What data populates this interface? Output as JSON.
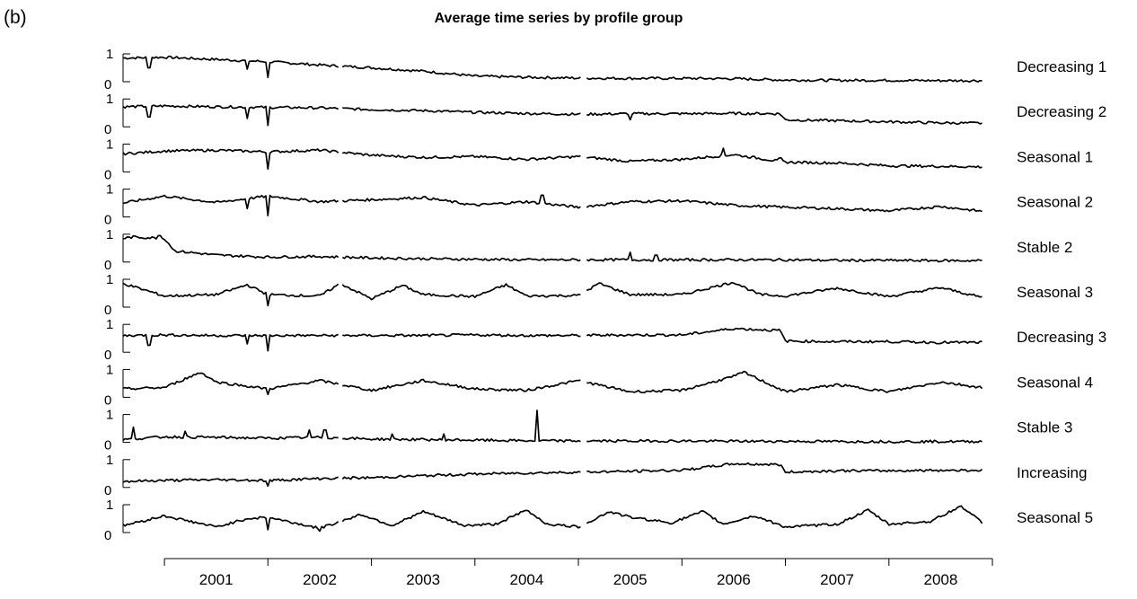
{
  "panel_label": "(b)",
  "chart_data": {
    "type": "line",
    "title": "Average time series by profile group",
    "xlabel": "",
    "ylabel": "",
    "x_tick_labels": [
      "2001",
      "2002",
      "2003",
      "2004",
      "2005",
      "2006",
      "2007",
      "2008"
    ],
    "x_range": [
      2000.6,
      2009.0
    ],
    "ylim": [
      0,
      1
    ],
    "y_tick_labels": [
      "0",
      "1"
    ],
    "grid": false,
    "legend": "none",
    "line_color": "#000000",
    "gaps": [
      2002.7,
      2005.05
    ],
    "series": [
      {
        "name": "Decreasing 1",
        "x": [
          2000.6,
          2001.0,
          2001.5,
          2002.0,
          2002.5,
          2003.0,
          2003.5,
          2004.0,
          2004.5,
          2005.0,
          2005.5,
          2006.0,
          2006.5,
          2007.0,
          2007.5,
          2008.0,
          2008.5,
          2008.9
        ],
        "y": [
          0.85,
          0.88,
          0.8,
          0.72,
          0.6,
          0.5,
          0.38,
          0.2,
          0.16,
          0.13,
          0.12,
          0.12,
          0.11,
          0.06,
          0.05,
          0.05,
          0.04,
          0.04
        ],
        "spikes": [
          [
            2000.85,
            0.5
          ],
          [
            2001.8,
            0.45
          ],
          [
            2002.0,
            0.15
          ]
        ]
      },
      {
        "name": "Decreasing 2",
        "x": [
          2000.6,
          2001.0,
          2001.5,
          2002.0,
          2002.5,
          2003.0,
          2003.5,
          2004.0,
          2004.5,
          2005.0,
          2005.5,
          2006.0,
          2006.5,
          2006.95,
          2007.0,
          2007.5,
          2008.0,
          2008.5,
          2008.9
        ],
        "y": [
          0.72,
          0.75,
          0.72,
          0.7,
          0.68,
          0.62,
          0.58,
          0.52,
          0.48,
          0.45,
          0.47,
          0.47,
          0.48,
          0.47,
          0.25,
          0.22,
          0.18,
          0.14,
          0.13
        ],
        "spikes": [
          [
            2000.85,
            0.35
          ],
          [
            2001.8,
            0.3
          ],
          [
            2002.0,
            0.05
          ],
          [
            2005.5,
            0.25
          ]
        ]
      },
      {
        "name": "Seasonal 1",
        "x": [
          2000.6,
          2001.0,
          2001.5,
          2002.0,
          2002.5,
          2003.0,
          2003.5,
          2004.0,
          2004.5,
          2005.0,
          2005.5,
          2006.0,
          2006.5,
          2007.0,
          2007.5,
          2008.0,
          2008.5,
          2008.9
        ],
        "y": [
          0.65,
          0.75,
          0.78,
          0.72,
          0.78,
          0.6,
          0.52,
          0.55,
          0.45,
          0.55,
          0.38,
          0.45,
          0.62,
          0.35,
          0.32,
          0.22,
          0.2,
          0.18
        ],
        "spikes": [
          [
            2002.0,
            0.1
          ],
          [
            2006.4,
            0.85
          ],
          [
            2006.95,
            0.5
          ]
        ]
      },
      {
        "name": "Seasonal 2",
        "x": [
          2000.6,
          2001.0,
          2001.5,
          2002.0,
          2002.5,
          2003.0,
          2003.5,
          2004.0,
          2004.5,
          2005.0,
          2005.5,
          2006.0,
          2006.5,
          2007.0,
          2007.5,
          2008.0,
          2008.5,
          2008.9
        ],
        "y": [
          0.5,
          0.75,
          0.52,
          0.75,
          0.55,
          0.62,
          0.7,
          0.42,
          0.55,
          0.35,
          0.55,
          0.58,
          0.42,
          0.35,
          0.3,
          0.22,
          0.38,
          0.2
        ],
        "spikes": [
          [
            2001.8,
            0.3
          ],
          [
            2002.0,
            0.05
          ],
          [
            2004.65,
            0.78
          ]
        ]
      },
      {
        "name": "Stable 2",
        "x": [
          2000.6,
          2000.7,
          2001.0,
          2001.1,
          2001.5,
          2002.0,
          2002.5,
          2003.0,
          2003.5,
          2004.0,
          2004.5,
          2005.0,
          2005.5,
          2006.0,
          2006.5,
          2007.0,
          2007.5,
          2008.0,
          2008.5,
          2008.9
        ],
        "y": [
          0.85,
          0.9,
          0.85,
          0.4,
          0.25,
          0.18,
          0.2,
          0.15,
          0.12,
          0.1,
          0.08,
          0.08,
          0.08,
          0.08,
          0.08,
          0.08,
          0.06,
          0.06,
          0.05,
          0.05
        ],
        "spikes": [
          [
            2000.95,
            0.95
          ],
          [
            2005.5,
            0.35
          ],
          [
            2005.75,
            0.25
          ]
        ]
      },
      {
        "name": "Seasonal 3",
        "x": [
          2000.6,
          2001.0,
          2001.5,
          2001.8,
          2002.0,
          2002.5,
          2002.7,
          2003.0,
          2003.3,
          2003.5,
          2004.0,
          2004.3,
          2004.5,
          2005.0,
          2005.2,
          2005.5,
          2006.0,
          2006.5,
          2006.75,
          2007.0,
          2007.5,
          2008.0,
          2008.5,
          2008.9
        ],
        "y": [
          0.85,
          0.4,
          0.45,
          0.8,
          0.45,
          0.4,
          0.85,
          0.3,
          0.78,
          0.45,
          0.38,
          0.8,
          0.4,
          0.42,
          0.85,
          0.45,
          0.45,
          0.9,
          0.45,
          0.4,
          0.68,
          0.38,
          0.7,
          0.35
        ],
        "spikes": [
          [
            2002.0,
            0.05
          ]
        ]
      },
      {
        "name": "Decreasing 3",
        "x": [
          2000.6,
          2001.0,
          2001.5,
          2002.0,
          2002.5,
          2003.0,
          2003.5,
          2004.0,
          2004.5,
          2005.0,
          2005.5,
          2006.0,
          2006.5,
          2006.95,
          2007.0,
          2007.5,
          2008.0,
          2008.5,
          2008.9
        ],
        "y": [
          0.6,
          0.62,
          0.6,
          0.6,
          0.6,
          0.6,
          0.6,
          0.62,
          0.6,
          0.6,
          0.62,
          0.62,
          0.85,
          0.78,
          0.4,
          0.38,
          0.38,
          0.35,
          0.35
        ],
        "spikes": [
          [
            2000.85,
            0.25
          ],
          [
            2001.8,
            0.3
          ],
          [
            2002.0,
            0.05
          ]
        ]
      },
      {
        "name": "Seasonal 4",
        "x": [
          2000.6,
          2001.0,
          2001.35,
          2001.5,
          2002.0,
          2002.5,
          2003.0,
          2003.5,
          2004.0,
          2004.5,
          2005.0,
          2005.5,
          2006.0,
          2006.5,
          2006.6,
          2007.0,
          2007.5,
          2008.0,
          2008.5,
          2008.9
        ],
        "y": [
          0.3,
          0.35,
          0.9,
          0.55,
          0.3,
          0.6,
          0.25,
          0.6,
          0.3,
          0.25,
          0.6,
          0.2,
          0.25,
          0.75,
          0.9,
          0.2,
          0.45,
          0.2,
          0.55,
          0.35
        ],
        "spikes": [
          [
            2002.0,
            0.1
          ]
        ]
      },
      {
        "name": "Stable 3",
        "x": [
          2000.6,
          2001.0,
          2001.5,
          2002.0,
          2002.5,
          2003.0,
          2003.5,
          2004.0,
          2004.5,
          2005.0,
          2005.5,
          2006.0,
          2006.5,
          2007.0,
          2007.5,
          2008.0,
          2008.5,
          2008.9
        ],
        "y": [
          0.1,
          0.2,
          0.18,
          0.15,
          0.18,
          0.12,
          0.1,
          0.08,
          0.06,
          0.05,
          0.05,
          0.05,
          0.04,
          0.04,
          0.03,
          0.03,
          0.03,
          0.03
        ],
        "spikes": [
          [
            2000.7,
            0.55
          ],
          [
            2001.2,
            0.4
          ],
          [
            2002.4,
            0.45
          ],
          [
            2002.55,
            0.45
          ],
          [
            2003.2,
            0.3
          ],
          [
            2003.7,
            0.3
          ],
          [
            2004.6,
            1.15
          ]
        ]
      },
      {
        "name": "Increasing",
        "x": [
          2000.6,
          2001.0,
          2001.5,
          2002.0,
          2002.5,
          2003.0,
          2003.5,
          2004.0,
          2004.5,
          2005.0,
          2005.5,
          2006.0,
          2006.5,
          2006.95,
          2007.0,
          2007.5,
          2008.0,
          2008.5,
          2008.9
        ],
        "y": [
          0.22,
          0.25,
          0.28,
          0.25,
          0.32,
          0.35,
          0.42,
          0.48,
          0.52,
          0.55,
          0.58,
          0.62,
          0.85,
          0.82,
          0.55,
          0.6,
          0.6,
          0.62,
          0.62
        ],
        "spikes": [
          [
            2002.0,
            0.05
          ]
        ]
      },
      {
        "name": "Seasonal 5",
        "x": [
          2000.6,
          2001.0,
          2001.5,
          2001.8,
          2002.0,
          2002.5,
          2002.9,
          2003.2,
          2003.5,
          2003.9,
          2004.2,
          2004.5,
          2004.7,
          2005.0,
          2005.3,
          2005.5,
          2005.9,
          2006.2,
          2006.4,
          2006.7,
          2007.0,
          2007.5,
          2007.8,
          2008.0,
          2008.4,
          2008.7,
          2008.9
        ],
        "y": [
          0.25,
          0.6,
          0.2,
          0.5,
          0.55,
          0.15,
          0.65,
          0.25,
          0.75,
          0.25,
          0.3,
          0.8,
          0.3,
          0.2,
          0.75,
          0.55,
          0.35,
          0.75,
          0.3,
          0.6,
          0.2,
          0.3,
          0.8,
          0.3,
          0.4,
          0.95,
          0.35
        ],
        "spikes": [
          [
            2002.0,
            0.1
          ],
          [
            2002.5,
            0.05
          ]
        ]
      }
    ]
  }
}
